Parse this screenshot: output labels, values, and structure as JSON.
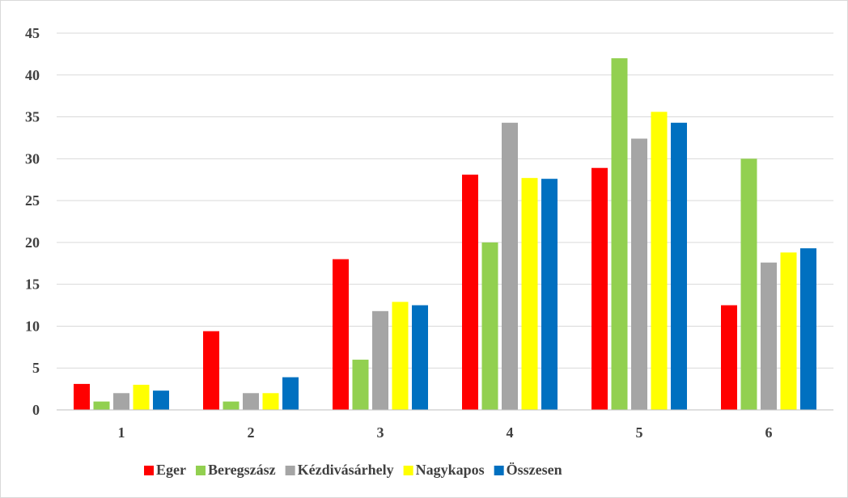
{
  "chart_data": {
    "type": "bar",
    "title": "",
    "xlabel": "",
    "ylabel": "",
    "categories": [
      "1",
      "2",
      "3",
      "4",
      "5",
      "6"
    ],
    "ylim": [
      0,
      45
    ],
    "yticks": [
      "0",
      "5",
      "10",
      "15",
      "20",
      "25",
      "30",
      "35",
      "40",
      "45"
    ],
    "grid": true,
    "legend_position": "bottom",
    "series": [
      {
        "name": "Eger",
        "color": "#ff0000",
        "values": [
          3.1,
          9.4,
          18,
          28.1,
          28.9,
          12.5
        ]
      },
      {
        "name": "Beregszász",
        "color": "#92d050",
        "values": [
          1,
          1,
          6,
          20,
          42,
          30
        ]
      },
      {
        "name": "Kézdivásárhely",
        "color": "#a5a5a5",
        "values": [
          2,
          2,
          11.8,
          34.3,
          32.4,
          17.6
        ]
      },
      {
        "name": "Nagykapos",
        "color": "#ffff00",
        "values": [
          3,
          2,
          12.9,
          27.7,
          35.6,
          18.8
        ]
      },
      {
        "name": "Összesen",
        "color": "#0070c0",
        "values": [
          2.3,
          3.9,
          12.5,
          27.6,
          34.3,
          19.3
        ]
      }
    ]
  }
}
